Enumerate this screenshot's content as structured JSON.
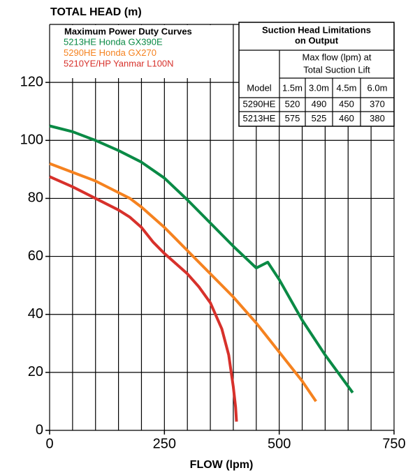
{
  "chart_data": {
    "type": "line",
    "y_axis_title": "TOTAL HEAD (m)",
    "x_axis_title": "FLOW (lpm)",
    "legend_title": "Maximum Power Duty Curves",
    "xlim": [
      0,
      750
    ],
    "ylim": [
      0,
      140
    ],
    "xticks": [
      0,
      250,
      500,
      750
    ],
    "xgrid": [
      0,
      50,
      100,
      150,
      200,
      250,
      300,
      350,
      400,
      450,
      500,
      550,
      600,
      650,
      700,
      750
    ],
    "yticks": [
      0,
      20,
      40,
      60,
      80,
      100,
      120
    ],
    "ygrid": [
      0,
      20,
      40,
      60,
      80,
      100,
      120,
      140
    ],
    "grid": true,
    "series": [
      {
        "name": "5213HE Honda GX390E",
        "color": "#0a8a45",
        "x": [
          0,
          50,
          100,
          150,
          200,
          250,
          300,
          350,
          400,
          450,
          475,
          500,
          550,
          600,
          660
        ],
        "values": [
          105,
          103,
          100,
          96.5,
          92.5,
          87,
          79.5,
          71.5,
          63.5,
          56,
          58,
          52,
          38,
          26,
          13
        ]
      },
      {
        "name": "5290HE Honda GX270",
        "color": "#f5821f",
        "x": [
          0,
          50,
          100,
          150,
          175,
          200,
          250,
          300,
          350,
          400,
          450,
          500,
          550,
          580
        ],
        "values": [
          92,
          89,
          86,
          82,
          80,
          77,
          70,
          62,
          54,
          46,
          37,
          27,
          17,
          10
        ]
      },
      {
        "name": "5210YE/HP Yanmar L100N",
        "color": "#d7312b",
        "x": [
          0,
          50,
          100,
          150,
          175,
          200,
          225,
          250,
          300,
          325,
          350,
          375,
          390,
          400,
          405,
          407
        ],
        "values": [
          87.5,
          84,
          80,
          76,
          73.5,
          70,
          65,
          61,
          54,
          49.5,
          44,
          35,
          26,
          15,
          8,
          3
        ]
      }
    ],
    "inset_table": {
      "title": [
        "Suction Head Limitations",
        "on Output"
      ],
      "subtitle": [
        "Max flow (lpm) at",
        "Total Suction Lift"
      ],
      "columns": [
        "Model",
        "1.5m",
        "3.0m",
        "4.5m",
        "6.0m"
      ],
      "rows": [
        [
          "5290HE",
          520,
          490,
          450,
          370
        ],
        [
          "5213HE",
          575,
          525,
          460,
          380
        ]
      ]
    }
  }
}
